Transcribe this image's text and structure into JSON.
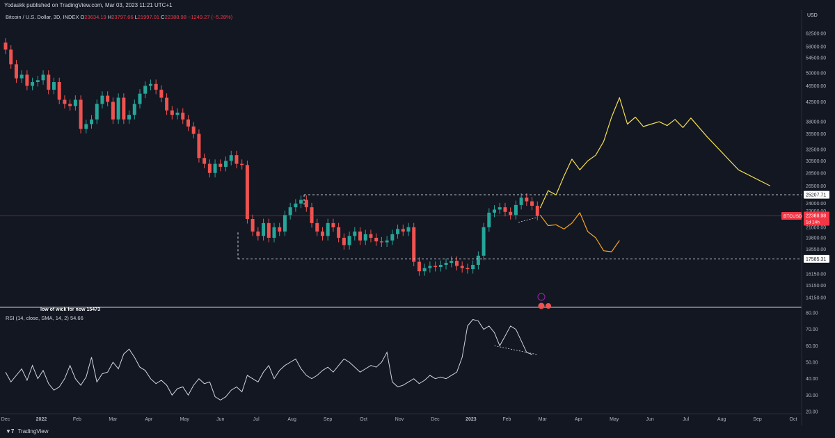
{
  "header": {
    "published_text": "Yodaskk published on TradingView.com, Mar 03, 2023 11:21 UTC+1"
  },
  "legend": {
    "symbol": "Bitcoin / U.S. Dollar, 3D, INDEX",
    "o_label": "O",
    "o_value": "23634.19",
    "h_label": "H",
    "h_value": "23797.66",
    "l_label": "L",
    "l_value": "21997.01",
    "c_label": "C",
    "c_value": "22388.98",
    "change": "−1249.27 (−5.28%)"
  },
  "rsi_legend": {
    "label": "RSI (14, close, SMA, 14, 2)",
    "value": "54.66"
  },
  "footer": {
    "brand": "TradingView"
  },
  "colors": {
    "up": "#26a69a",
    "down": "#ef5350",
    "background": "#131722",
    "forecast_yellow": "#f5e050",
    "forecast_orange": "#f5a623",
    "price_line": "#f23645"
  },
  "chart_data": [
    {
      "type": "candlestick",
      "title": "Bitcoin / U.S. Dollar, 3D, INDEX",
      "ylabel": "USD",
      "y_scale": "log",
      "ylim": [
        13500,
        67000
      ],
      "y_ticks": [
        "62500.00",
        "58000.00",
        "54500.00",
        "50000.00",
        "46500.00",
        "42500.00",
        "38000.00",
        "35500.00",
        "32500.00",
        "30500.00",
        "28500.00",
        "26500.00",
        "24000.00",
        "23000.00",
        "21000.00",
        "19800.00",
        "18550.00",
        "16150.00",
        "15150.00",
        "14150.00"
      ],
      "x_ticks": [
        "Dec",
        "2022",
        "Feb",
        "Mar",
        "Apr",
        "May",
        "Jun",
        "Jul",
        "Aug",
        "Sep",
        "Oct",
        "Nov",
        "Dec",
        "2023",
        "Feb",
        "Mar",
        "Apr",
        "May",
        "Jun",
        "Jul",
        "Aug",
        "Sep",
        "Oct"
      ],
      "price_markers": [
        {
          "label": "25207.71",
          "value": 25207.71
        },
        {
          "label": "22388.98",
          "value": 22388.98,
          "tag": "BTCUSD",
          "sub": "1d 14h"
        },
        {
          "label": "17585.31",
          "value": 17585.31
        }
      ],
      "range_lines": [
        {
          "value": 25207.71,
          "from": "Aug",
          "to": "future"
        },
        {
          "value": 17585.31,
          "from": "Jun",
          "to": "future"
        }
      ],
      "annotations": [
        "low of wick for now 15473"
      ],
      "candles_close": [
        57000,
        52500,
        48500,
        49500,
        46500,
        47500,
        48000,
        49500,
        45500,
        47500,
        43000,
        42000,
        41500,
        43000,
        36500,
        37500,
        38500,
        42000,
        44000,
        42500,
        38500,
        43500,
        38500,
        39500,
        42000,
        44500,
        46500,
        47000,
        45500,
        43500,
        40500,
        39500,
        40000,
        38500,
        37000,
        35500,
        31000,
        30000,
        28500,
        30000,
        29500,
        30500,
        31500,
        30000,
        29800,
        22000,
        20500,
        20000,
        21500,
        19800,
        21000,
        20500,
        22500,
        23500,
        24000,
        24500,
        23500,
        21500,
        20500,
        20000,
        21500,
        21000,
        19800,
        19000,
        20000,
        20500,
        19500,
        20200,
        19800,
        19400,
        19300,
        19500,
        20200,
        20800,
        20500,
        21000,
        17300,
        16400,
        16700,
        16900,
        16800,
        17000,
        17200,
        17400,
        16900,
        16700,
        16600,
        17000,
        17900,
        21000,
        22800,
        23200,
        23500,
        22900,
        22500,
        23800,
        24800,
        24300,
        23700,
        22389
      ],
      "forecast_yellow": [
        [
          0,
          23400
        ],
        [
          2,
          25800
        ],
        [
          4,
          25200
        ],
        [
          6,
          28000
        ],
        [
          8,
          30800
        ],
        [
          10,
          29000
        ],
        [
          12,
          30500
        ],
        [
          14,
          31500
        ],
        [
          16,
          34000
        ],
        [
          18,
          39000
        ],
        [
          20,
          43500
        ],
        [
          22,
          37500
        ],
        [
          24,
          39000
        ],
        [
          26,
          37000
        ],
        [
          28,
          37500
        ],
        [
          30,
          38000
        ],
        [
          32,
          37200
        ],
        [
          34,
          38500
        ],
        [
          36,
          36800
        ],
        [
          38,
          38800
        ],
        [
          42,
          35000
        ],
        [
          50,
          29000
        ],
        [
          58,
          26500
        ]
      ],
      "forecast_orange": [
        [
          0,
          22500
        ],
        [
          2,
          21200
        ],
        [
          4,
          21300
        ],
        [
          6,
          20800
        ],
        [
          8,
          21500
        ],
        [
          10,
          22800
        ],
        [
          12,
          20500
        ],
        [
          14,
          19800
        ],
        [
          16,
          18400
        ],
        [
          18,
          18300
        ],
        [
          20,
          19500
        ]
      ]
    },
    {
      "type": "line",
      "title": "RSI (14, close, SMA, 14, 2)",
      "ylim": [
        20,
        80
      ],
      "y_ticks": [
        "80.00",
        "70.00",
        "60.00",
        "50.00",
        "40.00",
        "30.00",
        "20.00"
      ],
      "values": [
        44,
        38,
        42,
        46,
        39,
        48,
        40,
        45,
        37,
        33,
        35,
        40,
        48,
        40,
        36,
        41,
        53,
        38,
        43,
        44,
        50,
        46,
        55,
        58,
        53,
        47,
        45,
        40,
        37,
        39,
        36,
        30,
        34,
        35,
        30,
        36,
        40,
        37,
        38,
        29,
        27,
        29,
        33,
        35,
        32,
        42,
        40,
        38,
        44,
        48,
        40,
        45,
        48,
        50,
        52,
        46,
        42,
        40,
        42,
        45,
        47,
        44,
        48,
        52,
        50,
        47,
        44,
        46,
        48,
        47,
        50,
        56,
        38,
        35,
        36,
        38,
        40,
        37,
        39,
        42,
        40,
        41,
        40,
        42,
        44,
        53,
        72,
        76,
        75,
        70,
        72,
        68,
        60,
        66,
        72,
        70,
        63,
        56,
        54.66
      ]
    }
  ]
}
